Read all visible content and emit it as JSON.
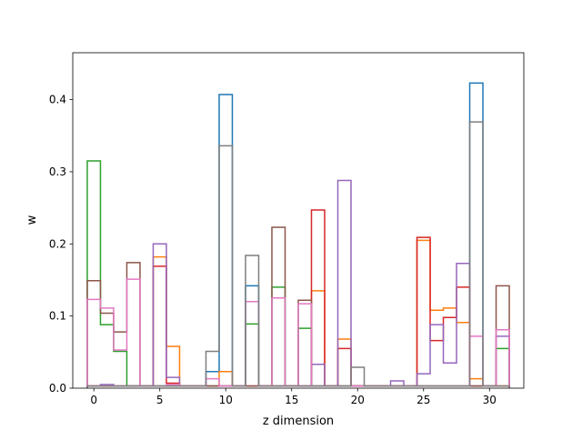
{
  "chart_data": {
    "type": "line",
    "style": "step-histogram",
    "xlabel": "z dimension",
    "ylabel": "w",
    "xlim": [
      -1.6,
      32.6
    ],
    "ylim": [
      0,
      0.465
    ],
    "x_ticks": [
      0,
      5,
      10,
      15,
      20,
      25,
      30
    ],
    "y_ticks": [
      0.0,
      0.1,
      0.2,
      0.3,
      0.4
    ],
    "grid": false,
    "legend": "none",
    "series": [
      {
        "color": "#1f77b4",
        "values": [
          0.003,
          0.003,
          0.003,
          0.003,
          0.003,
          0.003,
          0.003,
          0.003,
          0.003,
          0.023,
          0.407,
          0.003,
          0.142,
          0.003,
          0.003,
          0.003,
          0.003,
          0.003,
          0.003,
          0.003,
          0.003,
          0.003,
          0.003,
          0.003,
          0.003,
          0.003,
          0.003,
          0.003,
          0.003,
          0.423,
          0.003,
          0.003
        ]
      },
      {
        "color": "#ff7f0e",
        "values": [
          0.003,
          0.003,
          0.003,
          0.003,
          0.003,
          0.182,
          0.058,
          0.003,
          0.003,
          0.003,
          0.023,
          0.003,
          0.003,
          0.003,
          0.003,
          0.003,
          0.003,
          0.135,
          0.003,
          0.068,
          0.003,
          0.003,
          0.003,
          0.003,
          0.003,
          0.205,
          0.108,
          0.111,
          0.091,
          0.013,
          0.003,
          0.003
        ]
      },
      {
        "color": "#2ca02c",
        "values": [
          0.315,
          0.088,
          0.051,
          0.003,
          0.003,
          0.003,
          0.003,
          0.003,
          0.003,
          0.003,
          0.003,
          0.003,
          0.089,
          0.003,
          0.14,
          0.003,
          0.083,
          0.003,
          0.003,
          0.003,
          0.003,
          0.003,
          0.003,
          0.003,
          0.003,
          0.003,
          0.003,
          0.003,
          0.003,
          0.003,
          0.003,
          0.055
        ]
      },
      {
        "color": "#d62728",
        "values": [
          0.003,
          0.003,
          0.003,
          0.003,
          0.003,
          0.169,
          0.007,
          0.003,
          0.003,
          0.003,
          0.003,
          0.003,
          0.003,
          0.003,
          0.003,
          0.003,
          0.003,
          0.247,
          0.003,
          0.055,
          0.003,
          0.003,
          0.003,
          0.003,
          0.003,
          0.209,
          0.066,
          0.098,
          0.14,
          0.003,
          0.003,
          0.003
        ]
      },
      {
        "color": "#9467bd",
        "values": [
          0.003,
          0.005,
          0.003,
          0.003,
          0.003,
          0.2,
          0.015,
          0.003,
          0.003,
          0.003,
          0.003,
          0.003,
          0.003,
          0.003,
          0.003,
          0.003,
          0.003,
          0.033,
          0.003,
          0.288,
          0.003,
          0.003,
          0.003,
          0.01,
          0.003,
          0.02,
          0.088,
          0.035,
          0.173,
          0.003,
          0.003,
          0.072
        ]
      },
      {
        "color": "#8c564b",
        "values": [
          0.149,
          0.104,
          0.078,
          0.174,
          0.003,
          0.003,
          0.003,
          0.003,
          0.003,
          0.003,
          0.003,
          0.003,
          0.003,
          0.003,
          0.223,
          0.003,
          0.122,
          0.003,
          0.003,
          0.003,
          0.003,
          0.003,
          0.003,
          0.003,
          0.003,
          0.003,
          0.003,
          0.003,
          0.003,
          0.003,
          0.003,
          0.142
        ]
      },
      {
        "color": "#e377c2",
        "values": [
          0.123,
          0.111,
          0.053,
          0.151,
          0.003,
          0.003,
          0.005,
          0.003,
          0.003,
          0.013,
          0.003,
          0.003,
          0.12,
          0.003,
          0.125,
          0.003,
          0.117,
          0.003,
          0.003,
          0.003,
          0.003,
          0.003,
          0.003,
          0.003,
          0.003,
          0.003,
          0.003,
          0.003,
          0.003,
          0.072,
          0.003,
          0.081
        ]
      },
      {
        "color": "#7f7f7f",
        "values": [
          0.003,
          0.003,
          0.003,
          0.003,
          0.003,
          0.003,
          0.003,
          0.003,
          0.003,
          0.051,
          0.336,
          0.003,
          0.184,
          0.003,
          0.003,
          0.003,
          0.003,
          0.003,
          0.003,
          0.003,
          0.029,
          0.003,
          0.003,
          0.003,
          0.003,
          0.003,
          0.003,
          0.003,
          0.003,
          0.369,
          0.003,
          0.003
        ]
      }
    ]
  }
}
